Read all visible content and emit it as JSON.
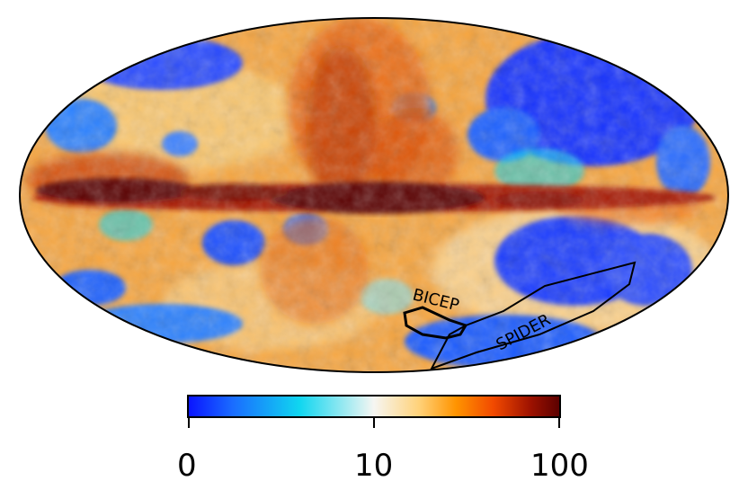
{
  "map": {
    "projection": "mollweide",
    "regions": [
      {
        "label": "BICEP"
      },
      {
        "label": "SPIDER"
      }
    ]
  },
  "colorbar": {
    "scale": "symlog",
    "colors": [
      "#0a13ff",
      "#1a6cff",
      "#10d6f0",
      "#f6f6f2",
      "#ffd27a",
      "#ff9400",
      "#f24a00",
      "#9e1200",
      "#5a0000"
    ],
    "ticks": [
      "0",
      "10",
      "100"
    ]
  }
}
